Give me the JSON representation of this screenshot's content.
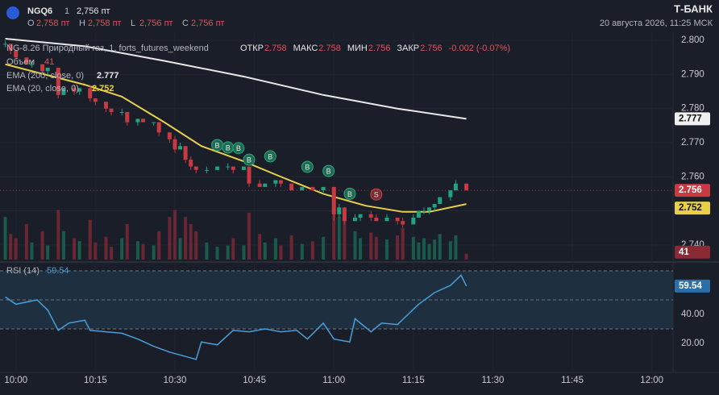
{
  "header": {
    "ticker": "NGQ6",
    "interval": "1",
    "last": "2,756 пт",
    "ohlc": [
      {
        "key": "O",
        "value": "2,758 пт"
      },
      {
        "key": "H",
        "value": "2,758 пт"
      },
      {
        "key": "L",
        "value": "2,756 пт"
      },
      {
        "key": "C",
        "value": "2,756 пт"
      }
    ],
    "brand": "Т‑БАНК",
    "datetime": "20 августа 2026, 11:25 МСК"
  },
  "chart_data": {
    "type": "candlestick",
    "title": "NG-8.26 Природный газ, 1, forts_futures_weekend",
    "stats": [
      {
        "key": "ОТКР",
        "value": 2.758
      },
      {
        "key": "МАКС",
        "value": 2.758
      },
      {
        "key": "МИН",
        "value": 2.756
      },
      {
        "key": "ЗАКР",
        "value": 2.756
      }
    ],
    "change": "-0.002 (-0.07%)",
    "up_color": "#1fa47e",
    "down_color": "#c73a42",
    "xlim": [
      "09:57",
      "12:04"
    ],
    "xticks": [
      "10:00",
      "10:15",
      "10:30",
      "10:45",
      "11:00",
      "11:15",
      "11:30",
      "11:45",
      "12:00"
    ],
    "ylim": [
      2.7357,
      2.8024
    ],
    "yticks": [
      {
        "value": 2.74,
        "label": "2.740"
      },
      {
        "value": 2.75,
        "label": "2.750"
      },
      {
        "value": 2.76,
        "label": "2.760"
      },
      {
        "value": 2.77,
        "label": "2.770"
      },
      {
        "value": 2.78,
        "label": "2.780"
      },
      {
        "value": 2.79,
        "label": "2.790"
      },
      {
        "value": 2.8,
        "label": "2.800"
      }
    ],
    "x": [
      "09:58",
      "09:59",
      "10:00",
      "10:02",
      "10:03",
      "10:05",
      "10:06",
      "10:08",
      "10:09",
      "10:11",
      "10:12",
      "10:14",
      "10:15",
      "10:17",
      "10:18",
      "10:20",
      "10:21",
      "10:23",
      "10:24",
      "10:26",
      "10:27",
      "10:29",
      "10:30",
      "10:31",
      "10:32",
      "10:33",
      "10:34",
      "10:36",
      "10:38",
      "10:40",
      "10:41",
      "10:43",
      "10:44",
      "10:46",
      "10:47",
      "10:49",
      "10:50",
      "10:52",
      "10:54",
      "10:56",
      "10:58",
      "11:00",
      "11:01",
      "11:02",
      "11:04",
      "11:05",
      "11:07",
      "11:08",
      "11:10",
      "11:12",
      "11:13",
      "11:15",
      "11:16",
      "11:17",
      "11:18",
      "11:19",
      "11:20",
      "11:22",
      "11:23",
      "11:25"
    ],
    "open": [
      2.799,
      2.799,
      2.797,
      2.795,
      2.793,
      2.793,
      2.791,
      2.792,
      2.784,
      2.786,
      2.785,
      2.786,
      2.783,
      2.782,
      2.78,
      2.779,
      2.779,
      2.776,
      2.777,
      2.776,
      2.776,
      2.773,
      2.771,
      2.768,
      2.769,
      2.765,
      2.763,
      2.762,
      2.762,
      2.763,
      2.763,
      2.762,
      2.763,
      2.758,
      2.757,
      2.758,
      2.759,
      2.758,
      2.756,
      2.757,
      2.756,
      2.757,
      2.749,
      2.751,
      2.747,
      2.748,
      2.749,
      2.748,
      2.747,
      2.748,
      2.747,
      2.746,
      2.748,
      2.75,
      2.75,
      2.751,
      2.752,
      2.754,
      2.756,
      2.758
    ],
    "high": [
      2.8,
      2.799,
      2.797,
      2.795,
      2.794,
      2.793,
      2.792,
      2.792,
      2.786,
      2.787,
      2.786,
      2.787,
      2.783,
      2.782,
      2.78,
      2.78,
      2.779,
      2.777,
      2.777,
      2.776,
      2.776,
      2.773,
      2.772,
      2.77,
      2.769,
      2.766,
      2.763,
      2.763,
      2.763,
      2.764,
      2.763,
      2.763,
      2.763,
      2.759,
      2.758,
      2.759,
      2.759,
      2.758,
      2.757,
      2.757,
      2.757,
      2.757,
      2.752,
      2.751,
      2.749,
      2.749,
      2.75,
      2.749,
      2.749,
      2.748,
      2.748,
      2.749,
      2.75,
      2.751,
      2.751,
      2.752,
      2.754,
      2.756,
      2.759,
      2.758
    ],
    "low": [
      2.798,
      2.796,
      2.795,
      2.793,
      2.792,
      2.79,
      2.79,
      2.783,
      2.784,
      2.784,
      2.784,
      2.782,
      2.781,
      2.779,
      2.778,
      2.778,
      2.775,
      2.775,
      2.776,
      2.775,
      2.772,
      2.77,
      2.767,
      2.768,
      2.764,
      2.762,
      2.761,
      2.761,
      2.762,
      2.762,
      2.761,
      2.762,
      2.757,
      2.757,
      2.757,
      2.757,
      2.757,
      2.756,
      2.756,
      2.756,
      2.755,
      2.747,
      2.748,
      2.746,
      2.747,
      2.747,
      2.747,
      2.747,
      2.747,
      2.746,
      2.745,
      2.746,
      2.748,
      2.749,
      2.749,
      2.75,
      2.752,
      2.753,
      2.756,
      2.756
    ],
    "close": [
      2.799,
      2.797,
      2.795,
      2.793,
      2.793,
      2.791,
      2.792,
      2.784,
      2.786,
      2.785,
      2.786,
      2.783,
      2.782,
      2.78,
      2.779,
      2.779,
      2.776,
      2.777,
      2.776,
      2.776,
      2.773,
      2.771,
      2.768,
      2.769,
      2.765,
      2.763,
      2.762,
      2.762,
      2.763,
      2.763,
      2.762,
      2.763,
      2.758,
      2.757,
      2.758,
      2.759,
      2.758,
      2.756,
      2.757,
      2.756,
      2.757,
      2.749,
      2.751,
      2.747,
      2.748,
      2.749,
      2.748,
      2.747,
      2.748,
      2.747,
      2.746,
      2.748,
      2.75,
      2.75,
      2.751,
      2.752,
      2.754,
      2.756,
      2.758,
      2.756
    ],
    "volume_name": "Объем",
    "volume_ylim": [
      0,
      1600
    ],
    "volume": [
      300,
      180,
      150,
      250,
      120,
      200,
      100,
      350,
      200,
      150,
      130,
      280,
      120,
      160,
      90,
      150,
      250,
      130,
      110,
      100,
      200,
      300,
      350,
      150,
      300,
      250,
      200,
      120,
      90,
      100,
      150,
      100,
      330,
      180,
      120,
      150,
      100,
      170,
      110,
      130,
      160,
      500,
      300,
      350,
      200,
      150,
      190,
      160,
      140,
      170,
      220,
      160,
      120,
      150,
      110,
      140,
      180,
      130,
      170,
      41
    ],
    "indicators": [
      {
        "name": "EMA (200, close, 0)",
        "last": 2.777,
        "color": "#e8e8e8",
        "x": [
          "09:58",
          "10:13",
          "10:28",
          "10:43",
          "10:58",
          "11:12",
          "11:25"
        ],
        "values": [
          2.8005,
          2.7983,
          2.794,
          2.7894,
          2.784,
          2.78,
          2.777
        ]
      },
      {
        "name": "EMA (20, close, 0)",
        "last": 2.752,
        "color": "#e8cf4a",
        "x": [
          "09:58",
          "10:13",
          "10:20",
          "10:28",
          "10:35",
          "10:43",
          "10:50",
          "10:58",
          "11:06",
          "11:13",
          "11:18",
          "11:25"
        ],
        "values": [
          2.793,
          2.787,
          2.7835,
          2.776,
          2.769,
          2.7645,
          2.76,
          2.755,
          2.7515,
          2.7497,
          2.7497,
          2.752
        ]
      }
    ],
    "signals": [
      {
        "label": "B",
        "x": "10:38",
        "price": 2.7693
      },
      {
        "label": "B",
        "x": "10:40",
        "price": 2.7686
      },
      {
        "label": "B",
        "x": "10:42",
        "price": 2.7684
      },
      {
        "label": "B",
        "x": "10:44",
        "price": 2.765
      },
      {
        "label": "B",
        "x": "10:48",
        "price": 2.766
      },
      {
        "label": "B",
        "x": "10:55",
        "price": 2.7629
      },
      {
        "label": "B",
        "x": "10:59",
        "price": 2.7617
      },
      {
        "label": "B",
        "x": "11:03",
        "price": 2.755
      },
      {
        "label": "S",
        "x": "11:08",
        "price": 2.7548
      }
    ],
    "rsi": {
      "name": "RSI (14)",
      "last": 59.54,
      "color": "#4a9fd8",
      "ylim": [
        0,
        75
      ],
      "yticks": [
        {
          "value": 20,
          "label": "20.00"
        },
        {
          "value": 40,
          "label": "40.00"
        }
      ],
      "levels": [
        30,
        50,
        70
      ],
      "x": [
        "09:58",
        "10:00",
        "10:04",
        "10:06",
        "10:08",
        "10:10",
        "10:13",
        "10:14",
        "10:17",
        "10:20",
        "10:23",
        "10:26",
        "10:29",
        "10:32",
        "10:34",
        "10:35",
        "10:38",
        "10:41",
        "10:44",
        "10:47",
        "10:50",
        "10:53",
        "10:55",
        "10:58",
        "11:00",
        "11:03",
        "11:04",
        "11:07",
        "11:09",
        "11:12",
        "11:14",
        "11:16",
        "11:19",
        "11:22",
        "11:24",
        "11:25"
      ],
      "values": [
        52,
        47,
        50,
        43,
        29,
        34,
        36,
        29,
        28,
        27,
        23,
        18,
        14,
        11,
        9,
        21,
        19,
        29,
        28,
        30,
        28,
        29,
        23,
        34,
        23,
        21,
        37,
        28,
        34,
        33,
        40,
        47,
        55,
        60,
        67,
        59.54
      ]
    }
  }
}
